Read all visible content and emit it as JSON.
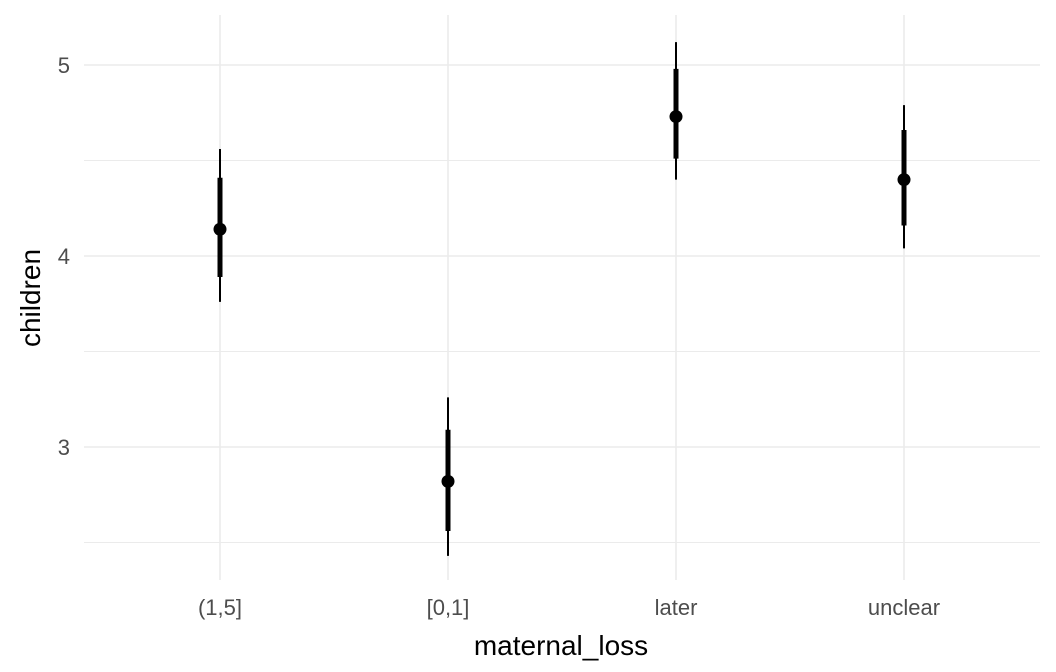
{
  "chart_data": {
    "type": "pointrange",
    "title": "",
    "xlabel": "maternal_loss",
    "ylabel": "children",
    "categories": [
      "(1,5]",
      "[0,1]",
      "later",
      "unclear"
    ],
    "points": [
      {
        "category": "(1,5]",
        "estimate": 4.14,
        "inner": [
          3.89,
          4.41
        ],
        "outer": [
          3.76,
          4.56
        ]
      },
      {
        "category": "[0,1]",
        "estimate": 2.82,
        "inner": [
          2.56,
          3.09
        ],
        "outer": [
          2.43,
          3.26
        ]
      },
      {
        "category": "later",
        "estimate": 4.73,
        "inner": [
          4.51,
          4.98
        ],
        "outer": [
          4.4,
          5.12
        ]
      },
      {
        "category": "unclear",
        "estimate": 4.4,
        "inner": [
          4.16,
          4.66
        ],
        "outer": [
          4.04,
          4.79
        ]
      }
    ],
    "ylim": [
      2.35,
      5.25
    ],
    "yticks": [
      3,
      4,
      5
    ],
    "y_minor_ticks": [
      2.5,
      3.5,
      4.5
    ],
    "grid": true,
    "legend": "none",
    "colors": {
      "point": "#000000",
      "grid": "#ebebeb",
      "tick_text": "#4d4d4d"
    }
  }
}
